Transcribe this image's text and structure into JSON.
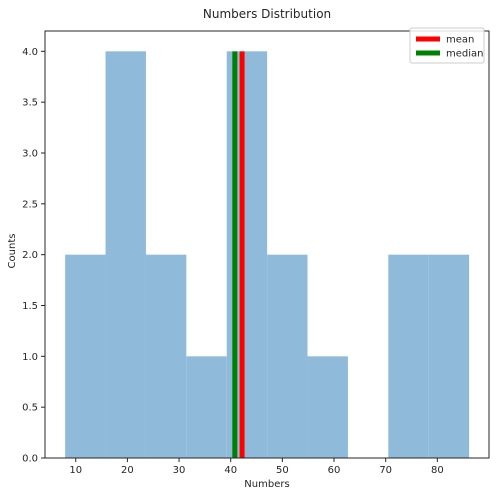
{
  "chart_data": {
    "type": "histogram",
    "title": "Numbers Distribution",
    "xlabel": "Numbers",
    "ylabel": "Counts",
    "xlim": [
      4.05,
      90.0
    ],
    "ylim": [
      0,
      4.2
    ],
    "xticks": [
      10,
      20,
      30,
      40,
      50,
      60,
      70,
      80
    ],
    "yticks": [
      0.0,
      0.5,
      1.0,
      1.5,
      2.0,
      2.5,
      3.0,
      3.5,
      4.0
    ],
    "bins": [
      {
        "start": 7.95,
        "end": 15.77,
        "count": 2
      },
      {
        "start": 15.77,
        "end": 23.59,
        "count": 4
      },
      {
        "start": 23.59,
        "end": 31.41,
        "count": 2
      },
      {
        "start": 31.41,
        "end": 39.23,
        "count": 1
      },
      {
        "start": 39.23,
        "end": 47.05,
        "count": 4
      },
      {
        "start": 47.05,
        "end": 54.87,
        "count": 2
      },
      {
        "start": 54.87,
        "end": 62.69,
        "count": 1
      },
      {
        "start": 62.69,
        "end": 70.51,
        "count": 0
      },
      {
        "start": 70.51,
        "end": 78.33,
        "count": 2
      },
      {
        "start": 78.33,
        "end": 86.15,
        "count": 2
      }
    ],
    "bar_color": "#8fbad9",
    "lines": [
      {
        "name": "mean",
        "x": 42.2,
        "color": "#ff0000"
      },
      {
        "name": "median",
        "x": 40.8,
        "color": "#008000"
      }
    ],
    "legend": {
      "position": "top-right",
      "entries": [
        "mean",
        "median"
      ]
    }
  }
}
